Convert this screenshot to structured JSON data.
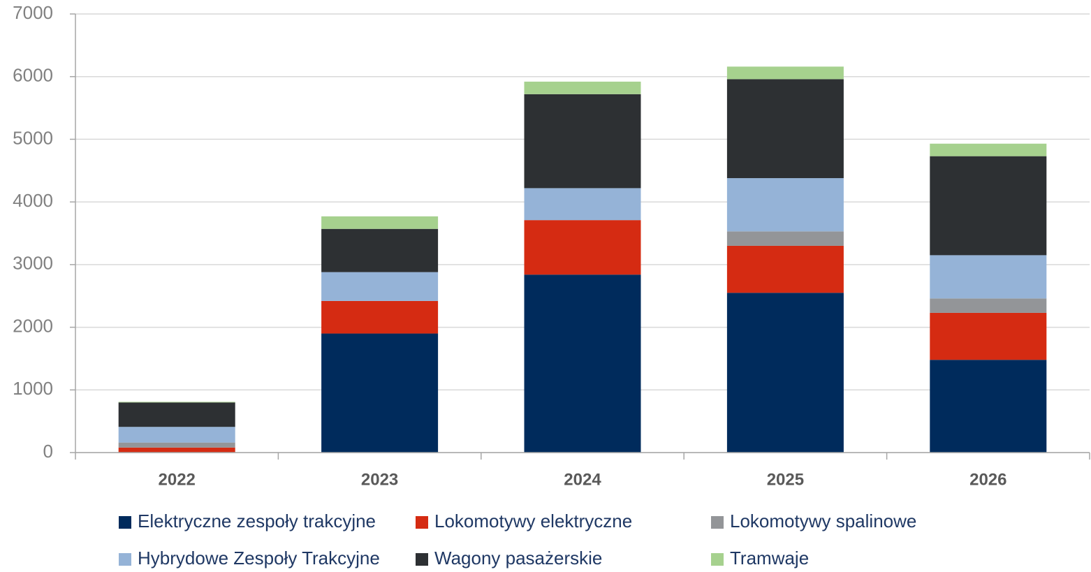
{
  "chart_data": {
    "type": "stacked_bar",
    "categories": [
      "2022",
      "2023",
      "2024",
      "2025",
      "2026"
    ],
    "series": [
      {
        "name": "Elektryczne zespoły trakcyjne",
        "color": "#002b5c",
        "values": [
          0,
          1900,
          2840,
          2550,
          1480
        ]
      },
      {
        "name": "Lokomotywy elektryczne",
        "color": "#d52b12",
        "values": [
          80,
          520,
          870,
          750,
          750
        ]
      },
      {
        "name": "Lokomotywy spalinowe",
        "color": "#939598",
        "values": [
          80,
          0,
          0,
          230,
          230
        ]
      },
      {
        "name": "Hybrydowe Zespoły Trakcyjne",
        "color": "#95b3d7",
        "values": [
          250,
          460,
          510,
          850,
          690
        ]
      },
      {
        "name": "Wagony pasażerskie",
        "color": "#2d3033",
        "values": [
          390,
          690,
          1500,
          1580,
          1580
        ]
      },
      {
        "name": "Tramwaje",
        "color": "#a6d18e",
        "values": [
          10,
          200,
          200,
          200,
          200
        ]
      }
    ],
    "ylim": [
      0,
      7000
    ],
    "yticks": [
      0,
      1000,
      2000,
      3000,
      4000,
      5000,
      6000,
      7000
    ],
    "grid": true
  }
}
